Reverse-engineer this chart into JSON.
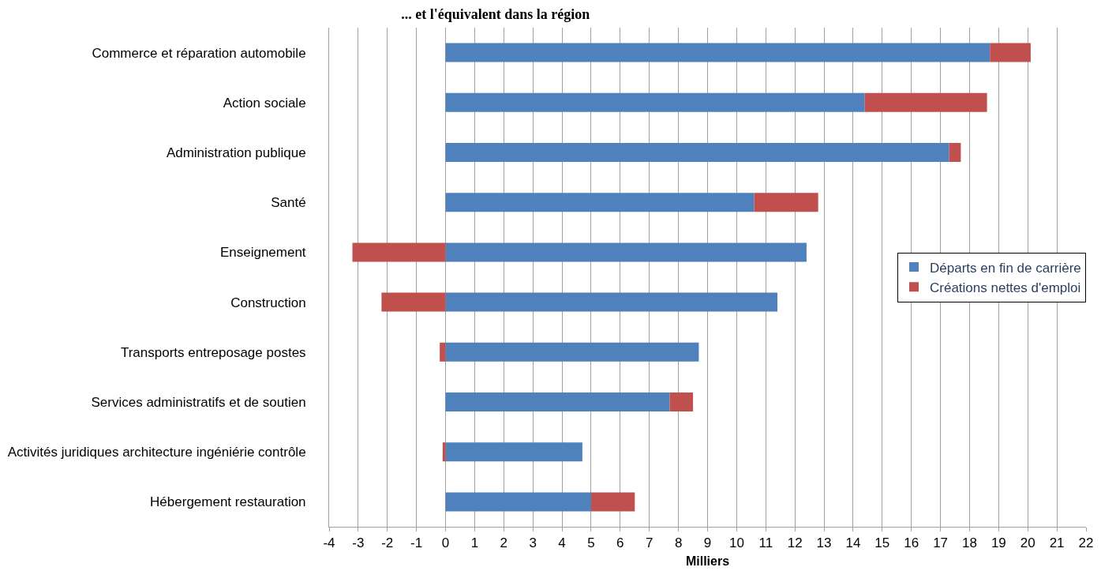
{
  "chart_data": {
    "type": "bar",
    "orientation": "horizontal",
    "stacked": true,
    "title": "... et l'équivalent dans la région",
    "xlabel": "Milliers",
    "categories": [
      "Commerce et réparation automobile",
      "Action sociale",
      "Administration publique",
      "Santé",
      "Enseignement",
      "Construction",
      "Transports entreposage postes",
      "Services administratifs et de soutien",
      "Activités juridiques architecture ingéniérie contrôle",
      "Hébergement restauration"
    ],
    "series": [
      {
        "name": "Départs en fin de carrière",
        "color": "#4f81bd",
        "values": [
          18.7,
          14.4,
          17.3,
          10.6,
          12.4,
          11.4,
          8.7,
          7.7,
          4.7,
          5.0
        ]
      },
      {
        "name": "Créations nettes d'emploi",
        "color": "#c0504d",
        "values": [
          1.4,
          4.2,
          0.4,
          2.2,
          -3.2,
          -2.2,
          -0.2,
          0.8,
          -0.1,
          1.5
        ]
      }
    ],
    "xlim": [
      -4,
      22
    ],
    "xticks": [
      -4,
      -3,
      -2,
      -1,
      0,
      1,
      2,
      3,
      4,
      5,
      6,
      7,
      8,
      9,
      10,
      11,
      12,
      13,
      14,
      15,
      16,
      17,
      18,
      19,
      20,
      21,
      22
    ],
    "grid": "x",
    "legend": "right"
  }
}
